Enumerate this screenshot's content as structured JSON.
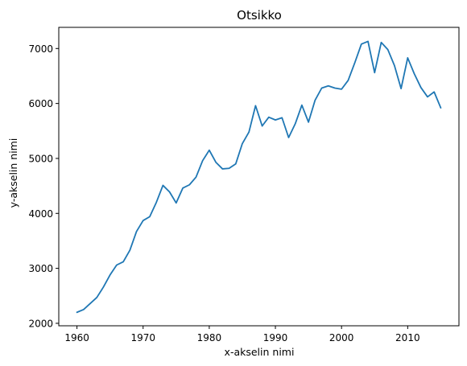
{
  "chart_data": {
    "type": "line",
    "title": "Otsikko",
    "xlabel": "x-akselin nimi",
    "ylabel": "y-akselin nimi",
    "xlim": [
      1957.25,
      2017.75
    ],
    "ylim": [
      1955,
      7385
    ],
    "xticks": [
      1960,
      1970,
      1980,
      1990,
      2000,
      2010
    ],
    "yticks": [
      2000,
      3000,
      4000,
      5000,
      6000,
      7000
    ],
    "grid": false,
    "color": "#1f77b4",
    "x": [
      1960,
      1961,
      1962,
      1963,
      1964,
      1965,
      1966,
      1967,
      1968,
      1969,
      1970,
      1971,
      1972,
      1973,
      1974,
      1975,
      1976,
      1977,
      1978,
      1979,
      1980,
      1981,
      1982,
      1983,
      1984,
      1985,
      1986,
      1987,
      1988,
      1989,
      1990,
      1991,
      1992,
      1993,
      1994,
      1995,
      1996,
      1997,
      1998,
      1999,
      2000,
      2001,
      2002,
      2003,
      2004,
      2005,
      2006,
      2007,
      2008,
      2009,
      2010,
      2011,
      2012,
      2013,
      2014,
      2015
    ],
    "y": [
      2200,
      2250,
      2360,
      2470,
      2660,
      2880,
      3060,
      3120,
      3330,
      3670,
      3870,
      3940,
      4200,
      4510,
      4390,
      4190,
      4460,
      4520,
      4660,
      4960,
      5150,
      4930,
      4810,
      4820,
      4900,
      5270,
      5480,
      5960,
      5590,
      5750,
      5700,
      5740,
      5380,
      5630,
      5970,
      5660,
      6060,
      6280,
      6320,
      6280,
      6260,
      6420,
      6740,
      7080,
      7130,
      6560,
      7110,
      6980,
      6690,
      6270,
      6830,
      6540,
      6290,
      6120,
      6210,
      5920
    ]
  }
}
